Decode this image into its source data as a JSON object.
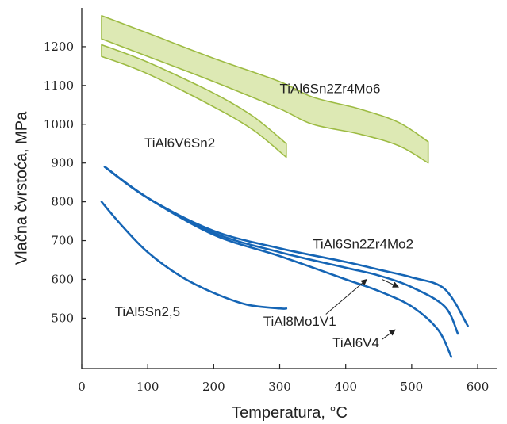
{
  "chart_data": {
    "type": "line",
    "xlabel": "Temperatura, °C",
    "ylabel": "Vlačna čvrstoća, MPa",
    "xlim": [
      0,
      630
    ],
    "ylim": [
      370,
      1300
    ],
    "x_ticks": [
      0,
      100,
      200,
      300,
      400,
      500,
      600
    ],
    "y_ticks": [
      500,
      600,
      700,
      800,
      900,
      1000,
      1100,
      1200
    ],
    "grid": false,
    "colors": {
      "band_fill": "#dde9b4",
      "band_edge": "#9dbb43",
      "line": "#1565b5",
      "axis": "#222222"
    },
    "series": [
      {
        "name": "TiAl6Sn2Zr4Mo6",
        "kind": "band",
        "upper": [
          [
            30,
            1280
          ],
          [
            100,
            1235
          ],
          [
            200,
            1170
          ],
          [
            300,
            1110
          ],
          [
            350,
            1070
          ],
          [
            420,
            1040
          ],
          [
            480,
            1005
          ],
          [
            525,
            955
          ]
        ],
        "lower": [
          [
            30,
            1220
          ],
          [
            100,
            1175
          ],
          [
            200,
            1110
          ],
          [
            300,
            1040
          ],
          [
            350,
            1000
          ],
          [
            420,
            975
          ],
          [
            480,
            945
          ],
          [
            525,
            900
          ]
        ]
      },
      {
        "name": "TiAl6V6Sn2",
        "kind": "band",
        "upper": [
          [
            30,
            1205
          ],
          [
            100,
            1160
          ],
          [
            200,
            1080
          ],
          [
            260,
            1020
          ],
          [
            310,
            950
          ]
        ],
        "lower": [
          [
            30,
            1175
          ],
          [
            100,
            1130
          ],
          [
            200,
            1045
          ],
          [
            260,
            985
          ],
          [
            310,
            915
          ]
        ]
      },
      {
        "name": "TiAl6Sn2Zr4Mo2",
        "kind": "line",
        "points": [
          [
            35,
            890
          ],
          [
            100,
            810
          ],
          [
            200,
            725
          ],
          [
            300,
            680
          ],
          [
            400,
            645
          ],
          [
            450,
            625
          ],
          [
            500,
            605
          ],
          [
            550,
            575
          ],
          [
            585,
            480
          ]
        ]
      },
      {
        "name": "TiAl8Mo1V1",
        "kind": "line",
        "points": [
          [
            35,
            890
          ],
          [
            100,
            810
          ],
          [
            200,
            720
          ],
          [
            300,
            670
          ],
          [
            400,
            630
          ],
          [
            450,
            610
          ],
          [
            500,
            580
          ],
          [
            550,
            530
          ],
          [
            570,
            460
          ]
        ]
      },
      {
        "name": "TiAl6V4",
        "kind": "line",
        "points": [
          [
            35,
            890
          ],
          [
            100,
            810
          ],
          [
            200,
            715
          ],
          [
            300,
            660
          ],
          [
            400,
            600
          ],
          [
            450,
            570
          ],
          [
            500,
            530
          ],
          [
            540,
            470
          ],
          [
            560,
            400
          ]
        ]
      },
      {
        "name": "TiAl5Sn2,5",
        "kind": "line",
        "points": [
          [
            30,
            800
          ],
          [
            60,
            740
          ],
          [
            100,
            670
          ],
          [
            150,
            608
          ],
          [
            200,
            565
          ],
          [
            250,
            535
          ],
          [
            300,
            525
          ],
          [
            310,
            525
          ]
        ]
      }
    ],
    "labels": [
      {
        "text": "TiAl6Sn2Zr4Mo6",
        "at": [
          300,
          1080
        ]
      },
      {
        "text": "TiAl6V6Sn2",
        "at": [
          95,
          940
        ]
      },
      {
        "text": "TiAl6Sn2Zr4Mo2",
        "at": [
          350,
          680
        ]
      },
      {
        "text": "TiAl8Mo1V1",
        "at": [
          275,
          480
        ]
      },
      {
        "text": "TiAl6V4",
        "at": [
          380,
          425
        ]
      },
      {
        "text": "TiAl5Sn2,5",
        "at": [
          50,
          505
        ]
      }
    ],
    "pointers": [
      {
        "from": [
          455,
          600
        ],
        "to": [
          480,
          580
        ]
      },
      {
        "from": [
          370,
          510
        ],
        "to": [
          432,
          600
        ]
      },
      {
        "from": [
          455,
          445
        ],
        "to": [
          475,
          470
        ]
      }
    ]
  }
}
